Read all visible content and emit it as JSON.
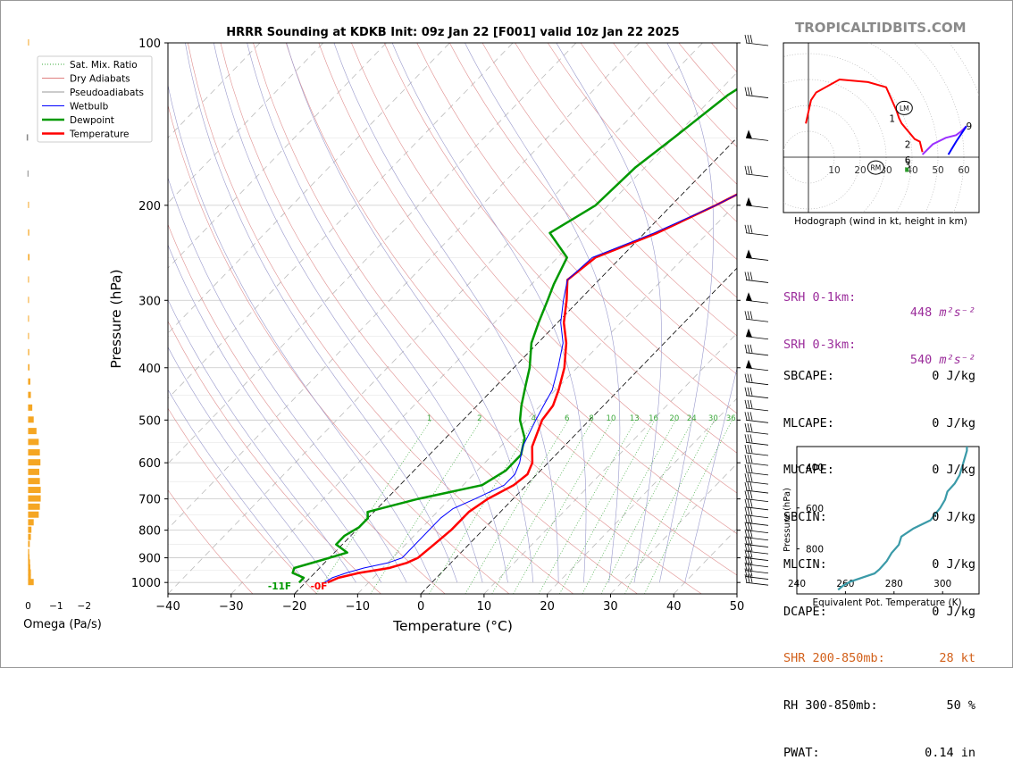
{
  "chart_data": [
    {
      "type": "skew-t",
      "title": "HRRR Sounding at KDKB Init: 09z Jan 22 [F001] valid 10z Jan 22 2025",
      "xlabel": "Temperature (°C)",
      "ylabel": "Pressure (hPa)",
      "x_ticks": [
        "−40",
        "−30",
        "−20",
        "−10",
        "0",
        "10",
        "20",
        "30",
        "40",
        "50"
      ],
      "y_ticks": [
        "100",
        "200",
        "300",
        "400",
        "500",
        "600",
        "700",
        "800",
        "900",
        "1000"
      ],
      "xlim": [
        -40,
        50
      ],
      "ylim": [
        1050,
        100
      ],
      "y_scale": "log",
      "legend_position": "top-left",
      "legend": [
        "Sat. Mix. Ratio",
        "Dry Adiabats",
        "Pseudoadiabats",
        "Wetbulb",
        "Dewpoint",
        "Temperature"
      ],
      "mixing_ratio_labels": [
        "1",
        "2",
        "4",
        "6",
        "8",
        "10",
        "13",
        "16",
        "20",
        "24",
        "30",
        "36"
      ],
      "surface_dewpoint_label": "-11F",
      "surface_temperature_label": "-0F",
      "series": [
        {
          "name": "Temperature",
          "color": "#ff0000",
          "points": [
            [
              1000,
              -16.5
            ],
            [
              980,
              -15.5
            ],
            [
              960,
              -13
            ],
            [
              940,
              -9
            ],
            [
              920,
              -7
            ],
            [
              900,
              -6
            ],
            [
              850,
              -5.5
            ],
            [
              800,
              -5
            ],
            [
              760,
              -5
            ],
            [
              740,
              -5
            ],
            [
              700,
              -4
            ],
            [
              660,
              -2
            ],
            [
              630,
              -1.5
            ],
            [
              600,
              -2.5
            ],
            [
              560,
              -5
            ],
            [
              500,
              -7.5
            ],
            [
              470,
              -8
            ],
            [
              440,
              -9.5
            ],
            [
              400,
              -12
            ],
            [
              360,
              -15.5
            ],
            [
              330,
              -19
            ],
            [
              300,
              -22
            ],
            [
              275,
              -25
            ],
            [
              250,
              -24
            ],
            [
              225,
              -18
            ],
            [
              200,
              -13
            ],
            [
              170,
              -7
            ],
            [
              150,
              -3
            ],
            [
              125,
              1
            ],
            [
              100,
              6
            ]
          ]
        },
        {
          "name": "Dewpoint",
          "color": "#009900",
          "points": [
            [
              1000,
              -21
            ],
            [
              980,
              -21
            ],
            [
              960,
              -23.5
            ],
            [
              940,
              -24
            ],
            [
              910,
              -21
            ],
            [
              880,
              -18
            ],
            [
              850,
              -21
            ],
            [
              820,
              -21
            ],
            [
              790,
              -20
            ],
            [
              760,
              -20
            ],
            [
              740,
              -21
            ],
            [
              700,
              -15
            ],
            [
              660,
              -7
            ],
            [
              620,
              -5.5
            ],
            [
              580,
              -5.5
            ],
            [
              540,
              -7.5
            ],
            [
              500,
              -11
            ],
            [
              470,
              -13
            ],
            [
              430,
              -15.5
            ],
            [
              400,
              -17.5
            ],
            [
              360,
              -21
            ],
            [
              330,
              -23
            ],
            [
              300,
              -25
            ],
            [
              280,
              -26.5
            ],
            [
              250,
              -28.5
            ],
            [
              225,
              -35
            ],
            [
              200,
              -32
            ],
            [
              170,
              -31.5
            ],
            [
              150,
              -30
            ],
            [
              125,
              -28
            ],
            [
              100,
              -23
            ]
          ]
        },
        {
          "name": "Wetbulb",
          "color": "#0000ff",
          "points": [
            [
              1000,
              -17
            ],
            [
              980,
              -16.5
            ],
            [
              960,
              -15
            ],
            [
              940,
              -13
            ],
            [
              920,
              -10
            ],
            [
              900,
              -8.5
            ],
            [
              850,
              -8.5
            ],
            [
              800,
              -8.5
            ],
            [
              760,
              -8.5
            ],
            [
              730,
              -8
            ],
            [
              700,
              -6
            ],
            [
              660,
              -3.5
            ],
            [
              630,
              -3.5
            ],
            [
              600,
              -4.5
            ],
            [
              560,
              -6.5
            ],
            [
              500,
              -8.5
            ],
            [
              470,
              -9.5
            ],
            [
              440,
              -10.5
            ],
            [
              400,
              -13
            ],
            [
              360,
              -16
            ],
            [
              330,
              -19.5
            ],
            [
              300,
              -22.5
            ],
            [
              275,
              -25
            ],
            [
              250,
              -24.5
            ],
            [
              225,
              -18.5
            ],
            [
              200,
              -13
            ],
            [
              170,
              -7
            ],
            [
              150,
              -3.5
            ],
            [
              125,
              0.5
            ],
            [
              100,
              5.5
            ]
          ]
        }
      ]
    },
    {
      "type": "bar",
      "title": "",
      "xlabel": "Omega (Pa/s)",
      "x_ticks": [
        "0",
        "−1",
        "−2"
      ],
      "xlim": [
        0.3,
        -2.5
      ],
      "bars": [
        {
          "p": 1000,
          "v": -0.2,
          "color": "#f5a623"
        },
        {
          "p": 980,
          "v": -0.1,
          "color": "#f5a623"
        },
        {
          "p": 960,
          "v": -0.1,
          "color": "#f5a623"
        },
        {
          "p": 940,
          "v": -0.08,
          "color": "#f5a623"
        },
        {
          "p": 920,
          "v": -0.07,
          "color": "#f5a623"
        },
        {
          "p": 900,
          "v": -0.05,
          "color": "#f5a623"
        },
        {
          "p": 880,
          "v": -0.04,
          "color": "#f5a623"
        },
        {
          "p": 850,
          "v": -0.06,
          "color": "#f5a623"
        },
        {
          "p": 825,
          "v": -0.1,
          "color": "#f5a623"
        },
        {
          "p": 800,
          "v": -0.12,
          "color": "#f5a623"
        },
        {
          "p": 775,
          "v": -0.2,
          "color": "#f5a623"
        },
        {
          "p": 750,
          "v": -0.38,
          "color": "#f5a623"
        },
        {
          "p": 725,
          "v": -0.42,
          "color": "#f5a623"
        },
        {
          "p": 700,
          "v": -0.45,
          "color": "#f5a623"
        },
        {
          "p": 675,
          "v": -0.45,
          "color": "#f5a623"
        },
        {
          "p": 650,
          "v": -0.42,
          "color": "#f5a623"
        },
        {
          "p": 625,
          "v": -0.4,
          "color": "#f5a623"
        },
        {
          "p": 600,
          "v": -0.44,
          "color": "#f5a623"
        },
        {
          "p": 575,
          "v": -0.42,
          "color": "#f5a623"
        },
        {
          "p": 550,
          "v": -0.38,
          "color": "#f5a623"
        },
        {
          "p": 525,
          "v": -0.3,
          "color": "#f5a623"
        },
        {
          "p": 500,
          "v": -0.2,
          "color": "#f5a623"
        },
        {
          "p": 475,
          "v": -0.15,
          "color": "#f5a623"
        },
        {
          "p": 450,
          "v": -0.1,
          "color": "#f5a623"
        },
        {
          "p": 425,
          "v": -0.08,
          "color": "#f5a623"
        },
        {
          "p": 400,
          "v": -0.05,
          "color": "#f5a623"
        },
        {
          "p": 375,
          "v": -0.04,
          "color": "#f5a623"
        },
        {
          "p": 350,
          "v": -0.03,
          "color": "#f5a623"
        },
        {
          "p": 325,
          "v": -0.03,
          "color": "#f5a623"
        },
        {
          "p": 300,
          "v": -0.02,
          "color": "#f5a623"
        },
        {
          "p": 275,
          "v": -0.03,
          "color": "#f5a623"
        },
        {
          "p": 250,
          "v": -0.05,
          "color": "#f5a623"
        },
        {
          "p": 225,
          "v": -0.04,
          "color": "#f5a623"
        },
        {
          "p": 200,
          "v": -0.02,
          "color": "#f5a623"
        },
        {
          "p": 175,
          "v": 0.02,
          "color": "#888888"
        },
        {
          "p": 150,
          "v": 0.05,
          "color": "#888888"
        },
        {
          "p": 100,
          "v": -0.01,
          "color": "#f5a623"
        }
      ]
    },
    {
      "type": "line",
      "title": "Hodograph (wind in kt, height in km)",
      "rings": [
        "10",
        "20",
        "30",
        "40",
        "50",
        "60"
      ],
      "height_labels": [
        "1",
        "2",
        "3",
        "6",
        "9"
      ],
      "markers": [
        "LM",
        "RM"
      ],
      "segments": [
        {
          "color": "#ff0000",
          "points": [
            [
              -1,
              13
            ],
            [
              1,
              22
            ],
            [
              3,
              25
            ],
            [
              12,
              30
            ],
            [
              23,
              29
            ],
            [
              30,
              27
            ],
            [
              34,
              18
            ],
            [
              35,
              15
            ],
            [
              36,
              13
            ],
            [
              41,
              7
            ],
            [
              43,
              6
            ],
            [
              44,
              2
            ]
          ]
        },
        {
          "color": "#9b30ff",
          "points": [
            [
              44,
              1
            ],
            [
              48,
              5
            ],
            [
              53,
              7.5
            ],
            [
              57,
              8.5
            ],
            [
              59,
              10
            ],
            [
              61,
              12
            ]
          ]
        },
        {
          "color": "#0000ff",
          "points": [
            [
              54,
              1
            ],
            [
              57,
              6
            ],
            [
              61,
              12
            ]
          ]
        }
      ]
    },
    {
      "type": "line",
      "title": "",
      "xlabel": "Equivalent Pot. Temperature (K)",
      "ylabel": "Pressure (hPa)",
      "x_ticks": [
        "240",
        "260",
        "280",
        "300"
      ],
      "y_ticks": [
        "400",
        "600",
        "800"
      ],
      "xlim": [
        240,
        315
      ],
      "ylim": [
        1020,
        300
      ],
      "series": [
        {
          "name": "",
          "color": "#3a9aa8",
          "points": [
            [
              1000,
              257
            ],
            [
              980,
              259
            ],
            [
              960,
              262
            ],
            [
              940,
              267
            ],
            [
              920,
              272
            ],
            [
              900,
              274
            ],
            [
              860,
              277
            ],
            [
              820,
              279
            ],
            [
              780,
              282
            ],
            [
              740,
              283
            ],
            [
              700,
              288
            ],
            [
              660,
              295
            ],
            [
              630,
              297
            ],
            [
              600,
              299
            ],
            [
              560,
              301
            ],
            [
              520,
              302
            ],
            [
              480,
              305
            ],
            [
              440,
              307
            ],
            [
              400,
              308
            ],
            [
              360,
              309
            ],
            [
              320,
              310
            ],
            [
              300,
              310
            ]
          ]
        }
      ]
    }
  ],
  "parameters": [
    {
      "label": "SRH 0-1km:",
      "value": "448",
      "unit": "m²s⁻²",
      "color": "#9b2d9b"
    },
    {
      "label": "SRH 0-3km:",
      "value": "540",
      "unit": "m²s⁻²",
      "color": "#9b2d9b"
    },
    {
      "label": "SBCAPE:",
      "value": "0 J/kg",
      "color": "#000000"
    },
    {
      "label": "MLCAPE:",
      "value": "0 J/kg",
      "color": "#000000"
    },
    {
      "label": "MUCAPE:",
      "value": "0 J/kg",
      "color": "#000000"
    },
    {
      "label": "SBCIN:",
      "value": "0 J/kg",
      "color": "#000000"
    },
    {
      "label": "MLCIN:",
      "value": "0 J/kg",
      "color": "#000000"
    },
    {
      "label": "DCAPE:",
      "value": "0 J/kg",
      "color": "#000000"
    },
    {
      "label": "SHR 200-850mb:",
      "value": "28 kt",
      "color": "#d2601a"
    },
    {
      "label": "RH 300-850mb:",
      "value": "50 %",
      "color": "#000000"
    },
    {
      "label": "PWAT:",
      "value": "0.14 in",
      "color": "#000000"
    }
  ],
  "brand": "TROPICALTIDBITS.COM"
}
